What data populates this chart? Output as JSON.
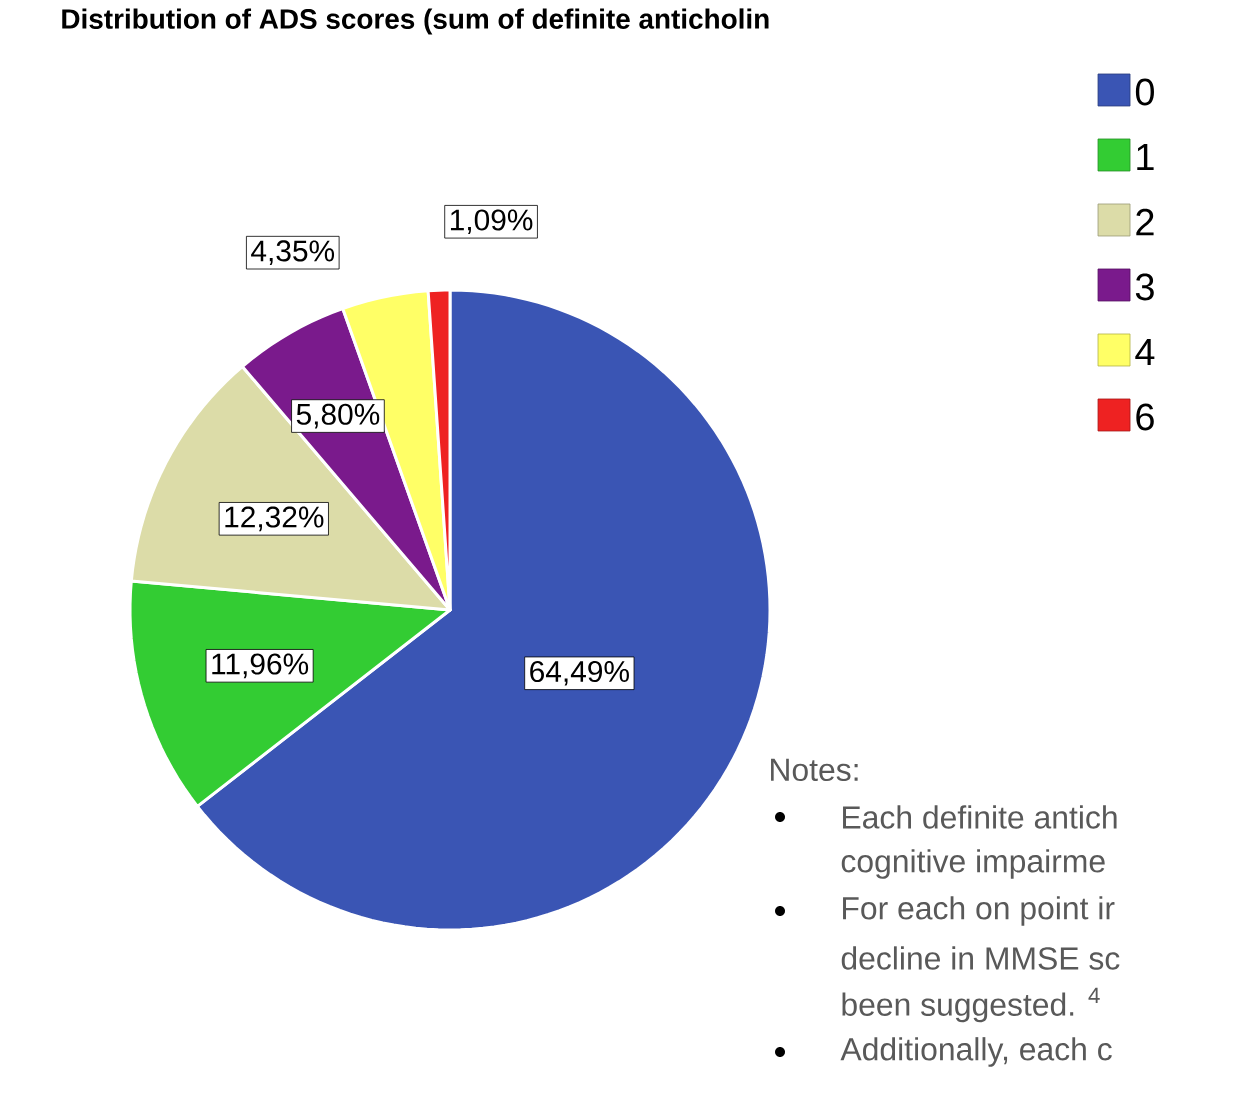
{
  "chart_data": {
    "type": "pie",
    "title": "Distribution of ADS scores (sum of definite anticholin",
    "categories": [
      "0",
      "1",
      "2",
      "3",
      "4",
      "6"
    ],
    "values": [
      64.49,
      11.96,
      12.32,
      5.8,
      4.35,
      1.09
    ],
    "colors": [
      "#3a55b4",
      "#33cc33",
      "#dcdca8",
      "#7a1a8c",
      "#ffff66",
      "#ee2222"
    ],
    "value_labels": [
      "64,49%",
      "11,96%",
      "12,32%",
      "5,80%",
      "4,35%",
      "1,09%"
    ],
    "legend": "top right",
    "annotations": [
      "Notes:",
      "Each definite antich",
      "cognitive impairme",
      "For each on point ir",
      "decline in MMSE sc",
      "been suggested. $^{4}$",
      "Additionally, each c"
    ]
  }
}
